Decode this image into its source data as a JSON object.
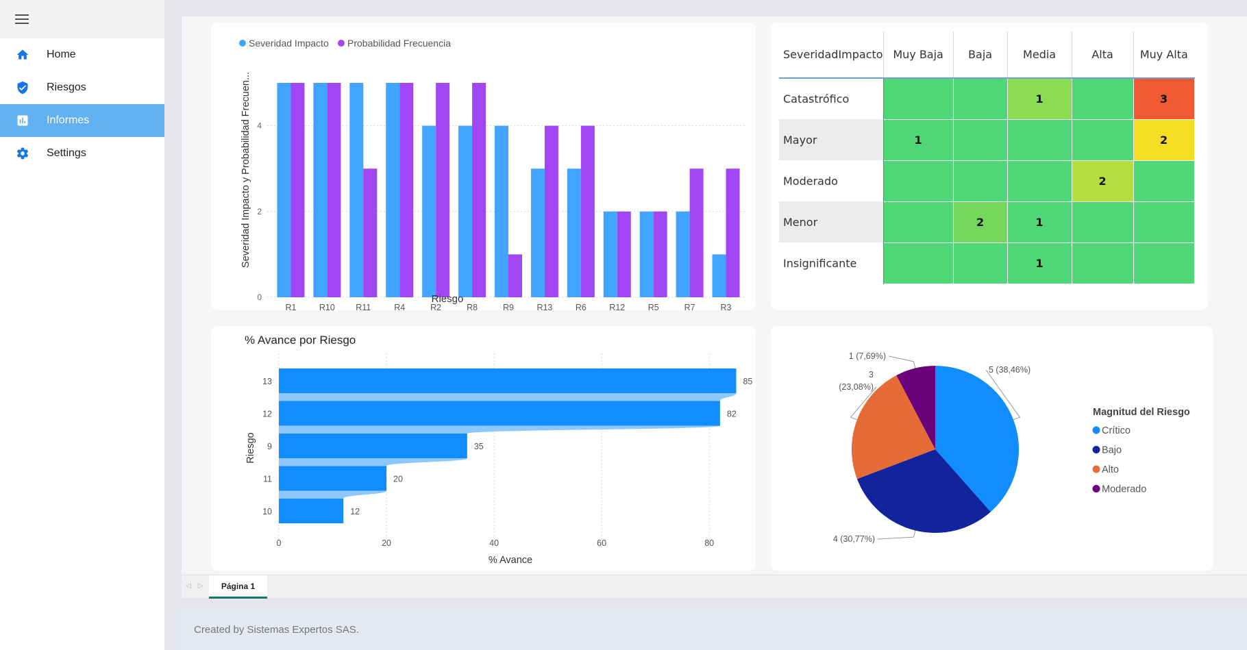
{
  "sidebar": {
    "items": [
      {
        "label": "Home",
        "icon": "home-icon"
      },
      {
        "label": "Riesgos",
        "icon": "shield-icon"
      },
      {
        "label": "Informes",
        "icon": "report-icon",
        "active": true
      },
      {
        "label": "Settings",
        "icon": "gear-icon"
      }
    ]
  },
  "colors": {
    "accent": "#63b0f0",
    "severidad": "#41a4ff",
    "probabilidad": "#a146f5"
  },
  "bar_chart": {
    "legend": [
      "Severidad Impacto",
      "Probabilidad Frecuencia"
    ],
    "ylabel": "Severidad Impacto y Probabilidad Frecuen...",
    "xlabel": "Riesgo"
  },
  "heatmap": {
    "corner": "SeveridadImpacto",
    "columns": [
      "Muy Baja",
      "Baja",
      "Media",
      "Alta",
      "Muy Alta"
    ],
    "rows": [
      {
        "label": "Catastrófico",
        "cells": [
          "",
          "",
          "1",
          "",
          "3"
        ],
        "colors": [
          "#4fd676",
          "#4fd676",
          "#8bdc55",
          "#4fd676",
          "#ef5a32"
        ]
      },
      {
        "label": "Mayor",
        "cells": [
          "1",
          "",
          "",
          "",
          "2"
        ],
        "colors": [
          "#4fd676",
          "#4fd676",
          "#4fd676",
          "#4fd676",
          "#f5de22"
        ]
      },
      {
        "label": "Moderado",
        "cells": [
          "",
          "",
          "",
          "2",
          ""
        ],
        "colors": [
          "#4fd676",
          "#4fd676",
          "#4fd676",
          "#b4de3f",
          "#4fd676"
        ]
      },
      {
        "label": "Menor",
        "cells": [
          "",
          "2",
          "1",
          "",
          ""
        ],
        "colors": [
          "#4fd676",
          "#74d85e",
          "#4fd676",
          "#4fd676",
          "#4fd676"
        ]
      },
      {
        "label": "Insignificante",
        "cells": [
          "",
          "",
          "1",
          "",
          ""
        ],
        "colors": [
          "#4fd676",
          "#4fd676",
          "#4fd676",
          "#4fd676",
          "#4fd676"
        ]
      }
    ]
  },
  "hbar_chart": {
    "title": "% Avance por Riesgo",
    "ylabel": "Riesgo",
    "xlabel": "% Avance"
  },
  "pie_chart": {
    "legend_title": "Magnitud del Riesgo"
  },
  "tabs": {
    "page": "Página 1"
  },
  "footer": {
    "text": "Created by Sistemas Expertos SAS."
  },
  "chart_data": [
    {
      "type": "bar",
      "categories": [
        "R1",
        "R10",
        "R11",
        "R4",
        "R2",
        "R8",
        "R9",
        "R13",
        "R6",
        "R12",
        "R5",
        "R7",
        "R3"
      ],
      "series": [
        {
          "name": "Severidad Impacto",
          "values": [
            5,
            5,
            5,
            5,
            4,
            4,
            4,
            3,
            3,
            2,
            2,
            2,
            1
          ]
        },
        {
          "name": "Probabilidad Frecuencia",
          "values": [
            5,
            5,
            3,
            5,
            5,
            5,
            1,
            4,
            4,
            2,
            2,
            3,
            3
          ]
        }
      ],
      "title": "",
      "xlabel": "Riesgo",
      "ylabel": "Severidad Impacto y Probabilidad Frecuen...",
      "ylim": [
        0,
        5
      ],
      "yticks": [
        0,
        2,
        4
      ],
      "grid": true,
      "legend": "top-left"
    },
    {
      "type": "bar",
      "orientation": "horizontal",
      "categories": [
        "13",
        "12",
        "9",
        "11",
        "10"
      ],
      "values": [
        85,
        82,
        35,
        20,
        12
      ],
      "title": "% Avance por Riesgo",
      "xlabel": "% Avance",
      "ylabel": "Riesgo",
      "xlim": [
        0,
        88
      ],
      "xticks": [
        0,
        20,
        40,
        60,
        80
      ],
      "grid": true
    },
    {
      "type": "pie",
      "categories": [
        "Crítico",
        "Bajo",
        "Alto",
        "Moderado"
      ],
      "values": [
        5,
        4,
        3,
        1
      ],
      "labels": [
        "5 (38,46%)",
        "4 (30,77%)",
        "3 (23,08%)",
        "1 (7,69%)"
      ],
      "colors": [
        "#118dff",
        "#12239e",
        "#e66c37",
        "#6b007b"
      ],
      "legend_title": "Magnitud del Riesgo",
      "legend": "right"
    }
  ]
}
